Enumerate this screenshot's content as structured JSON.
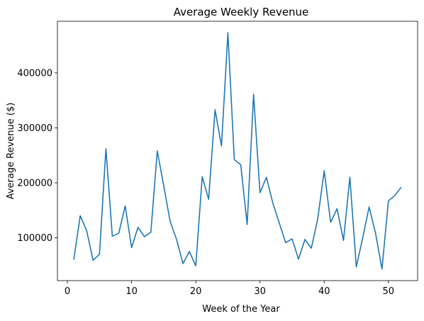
{
  "chart_data": {
    "type": "line",
    "title": "Average Weekly Revenue",
    "xlabel": "Week of the Year",
    "ylabel": "Average Revenue ($)",
    "xlim": [
      -1.55,
      54.55
    ],
    "ylim": [
      22000,
      494000
    ],
    "x_ticks": [
      0,
      10,
      20,
      30,
      40,
      50
    ],
    "x_tick_labels": [
      "0",
      "10",
      "20",
      "30",
      "40",
      "50"
    ],
    "y_ticks": [
      100000,
      200000,
      300000,
      400000
    ],
    "y_tick_labels": [
      "100000",
      "200000",
      "300000",
      "400000"
    ],
    "grid": false,
    "line_color": "#1f77b4",
    "series": [
      {
        "x": [
          1,
          2,
          3,
          4,
          5,
          6,
          7,
          8,
          9,
          10,
          11,
          12,
          13,
          14,
          15,
          16,
          17,
          18,
          19,
          20,
          21,
          22,
          23,
          24,
          25,
          26,
          27,
          28,
          29,
          30,
          31,
          32,
          33,
          34,
          35,
          36,
          37,
          38,
          39,
          40,
          41,
          42,
          43,
          44,
          45,
          46,
          47,
          48,
          49,
          50,
          51,
          52
        ],
        "values": [
          60000,
          140000,
          113000,
          59000,
          70000,
          262000,
          103000,
          108000,
          158000,
          82000,
          119000,
          102000,
          110000,
          258000,
          195000,
          130000,
          97000,
          53000,
          75000,
          49000,
          211000,
          170000,
          333000,
          267000,
          473000,
          242000,
          233000,
          124000,
          361000,
          182000,
          210000,
          163000,
          127000,
          91000,
          98000,
          61000,
          97000,
          81000,
          135000,
          222000,
          128000,
          153000,
          95000,
          210000,
          47000,
          100000,
          156000,
          108000,
          43000,
          167000,
          177000,
          192000
        ]
      }
    ]
  }
}
